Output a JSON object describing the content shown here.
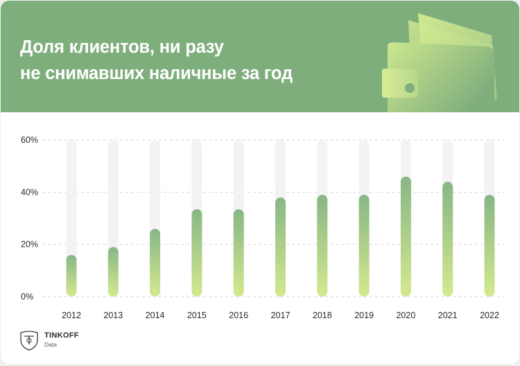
{
  "header": {
    "title_line1": "Доля клиентов, ни разу",
    "title_line2": "не снимавших наличные за год"
  },
  "brand": {
    "name": "TINKOFF",
    "sub": "Data"
  },
  "colors": {
    "header_bg": "#7fae7d",
    "bar_top": "#87b685",
    "bar_bottom": "#d4e98f",
    "track": "#f3f3f3",
    "grid": "#d6d6d6"
  },
  "chart_data": {
    "type": "bar",
    "categories": [
      "2012",
      "2013",
      "2014",
      "2015",
      "2016",
      "2017",
      "2018",
      "2019",
      "2020",
      "2021",
      "2022"
    ],
    "values": [
      16,
      19,
      26,
      33.5,
      33.5,
      38,
      39,
      39,
      46,
      44,
      39
    ],
    "y_ticks": [
      "0%",
      "20%",
      "40%",
      "60%"
    ],
    "y_tick_values": [
      0,
      20,
      40,
      60
    ],
    "ylim": [
      0,
      60
    ],
    "grid": true
  }
}
